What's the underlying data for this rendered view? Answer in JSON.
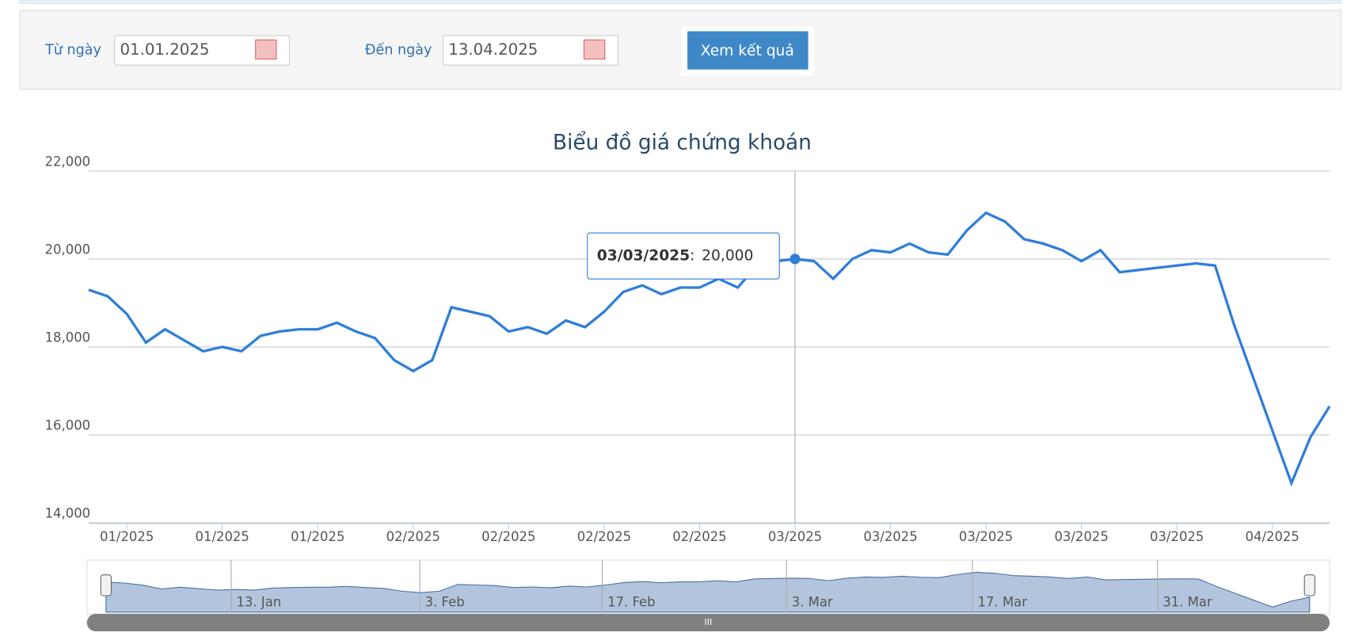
{
  "form": {
    "from_label": "Từ ngày",
    "from_value": "01.01.2025",
    "to_label": "Đến ngày",
    "to_value": "13.04.2025",
    "button": "Xem kết quả"
  },
  "chart_data": {
    "type": "line",
    "title": "Biểu đồ giá chứng khoán",
    "x": [
      null,
      null,
      "01/2025",
      null,
      null,
      null,
      null,
      "01/2025",
      null,
      null,
      null,
      null,
      "01/2025",
      null,
      null,
      null,
      null,
      "02/2025",
      null,
      null,
      null,
      null,
      "02/2025",
      null,
      null,
      null,
      null,
      "02/2025",
      null,
      null,
      null,
      null,
      "02/2025",
      null,
      null,
      null,
      null,
      "03/2025",
      null,
      null,
      null,
      null,
      "03/2025",
      null,
      null,
      null,
      null,
      "03/2025",
      null,
      null,
      null,
      null,
      "03/2025",
      null,
      null,
      null,
      null,
      "03/2025",
      null,
      null,
      null,
      null,
      "04/2025",
      null,
      null,
      null
    ],
    "series": [
      {
        "color": "#2f7ed8",
        "values": [
          19300,
          19150,
          18750,
          18100,
          18400,
          18150,
          17900,
          18000,
          17900,
          18250,
          18350,
          18400,
          18400,
          18550,
          18350,
          18200,
          17700,
          17450,
          17700,
          18900,
          18800,
          18700,
          18350,
          18450,
          18300,
          18600,
          18450,
          18800,
          19250,
          19400,
          19200,
          19350,
          19350,
          19550,
          19350,
          19850,
          19950,
          20000,
          19950,
          19550,
          20000,
          20200,
          20150,
          20350,
          20150,
          20100,
          20650,
          21050,
          20850,
          20450,
          20350,
          20200,
          19950,
          20200,
          19700,
          19750,
          19800,
          19850,
          19900,
          19850,
          18500,
          17300,
          16100,
          14900,
          15950,
          16650
        ]
      }
    ],
    "ylim": [
      14000,
      22000
    ],
    "yticks": [
      {
        "value": 14000,
        "label": "14,000"
      },
      {
        "value": 16000,
        "label": "16,000"
      },
      {
        "value": 18000,
        "label": "18,000"
      },
      {
        "value": 20000,
        "label": "20,000"
      },
      {
        "value": 22000,
        "label": "22,000"
      }
    ],
    "grid": true,
    "tooltip": {
      "label": "03/03/2025",
      "separator": ":",
      "value": 20000,
      "value_label": "20,000"
    },
    "navigator_labels": [
      "13. Jan",
      "3. Feb",
      "17. Feb",
      "3. Mar",
      "17. Mar",
      "31. Mar"
    ]
  }
}
